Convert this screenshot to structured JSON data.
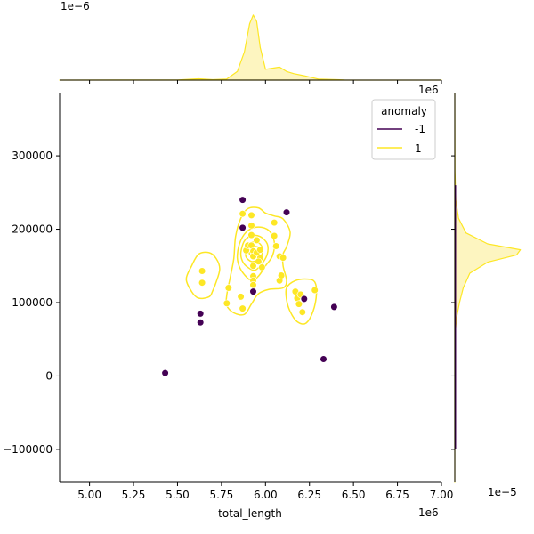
{
  "chart_data": {
    "type": "scatter",
    "title": "",
    "xlabel": "total_length",
    "ylabel": "",
    "x_offset_label": "1e6",
    "x_offset_label_top": "1e6",
    "top_marginal_offset_label": "1e−6",
    "right_marginal_offset_label": "1e−5",
    "xlim": [
      4.83,
      7.0
    ],
    "ylim": [
      -145000,
      385000
    ],
    "x_ticks": [
      5.0,
      5.25,
      5.5,
      5.75,
      6.0,
      6.25,
      6.5,
      6.75,
      7.0
    ],
    "x_tick_labels": [
      "5.00",
      "5.25",
      "5.50",
      "5.75",
      "6.00",
      "6.25",
      "6.50",
      "6.75",
      "7.00"
    ],
    "y_ticks": [
      -100000,
      0,
      100000,
      200000,
      300000
    ],
    "y_tick_labels": [
      "−100000",
      "0",
      "100000",
      "200000",
      "300000"
    ],
    "grid": false,
    "legend": {
      "title": "anomaly",
      "placement": "top-right",
      "entries": [
        {
          "label": "-1",
          "color": "#440154"
        },
        {
          "label": "1",
          "color": "#fde725"
        }
      ]
    },
    "colors": {
      "anomaly_neg": "#440154",
      "anomaly_pos": "#fde725",
      "kde_line": "#fde725",
      "kde_fill": "#fdf5c0"
    },
    "series": [
      {
        "name": "-1",
        "color": "#440154",
        "points": [
          [
            5.43,
            4000
          ],
          [
            5.63,
            73000
          ],
          [
            5.63,
            85000
          ],
          [
            5.87,
            202000
          ],
          [
            5.87,
            240000
          ],
          [
            5.93,
            115000
          ],
          [
            6.12,
            223000
          ],
          [
            6.22,
            105000
          ],
          [
            6.33,
            23000
          ],
          [
            6.39,
            94000
          ]
        ]
      },
      {
        "name": "1",
        "color": "#fde725",
        "points": [
          [
            5.64,
            127000
          ],
          [
            5.64,
            143000
          ],
          [
            5.78,
            99000
          ],
          [
            5.79,
            120000
          ],
          [
            5.86,
            108000
          ],
          [
            5.87,
            92000
          ],
          [
            5.87,
            221000
          ],
          [
            5.89,
            171000
          ],
          [
            5.9,
            178000
          ],
          [
            5.92,
            219000
          ],
          [
            5.92,
            205000
          ],
          [
            5.92,
            192000
          ],
          [
            5.92,
            178000
          ],
          [
            5.93,
            170000
          ],
          [
            5.93,
            163000
          ],
          [
            5.93,
            150000
          ],
          [
            5.93,
            136000
          ],
          [
            5.93,
            130000
          ],
          [
            5.97,
            161000
          ],
          [
            5.98,
            148000
          ],
          [
            5.95,
            168000
          ],
          [
            5.95,
            185000
          ],
          [
            5.97,
            172000
          ],
          [
            6.05,
            209000
          ],
          [
            6.05,
            191000
          ],
          [
            6.06,
            177000
          ],
          [
            6.08,
            163000
          ],
          [
            6.08,
            130000
          ],
          [
            6.09,
            137000
          ],
          [
            6.1,
            161000
          ],
          [
            6.17,
            115000
          ],
          [
            6.18,
            106000
          ],
          [
            6.19,
            98000
          ],
          [
            6.2,
            111000
          ],
          [
            6.21,
            87000
          ],
          [
            6.28,
            117000
          ],
          [
            5.93,
            124000
          ],
          [
            5.96,
            156000
          ]
        ]
      }
    ],
    "kde_contours": [
      [
        [
          5.58,
          150000
        ],
        [
          5.62,
          166000
        ],
        [
          5.68,
          168000
        ],
        [
          5.72,
          160000
        ],
        [
          5.74,
          146000
        ],
        [
          5.72,
          128000
        ],
        [
          5.7,
          116000
        ],
        [
          5.68,
          108000
        ],
        [
          5.62,
          106000
        ],
        [
          5.58,
          115000
        ],
        [
          5.55,
          132000
        ]
      ],
      [
        [
          5.78,
          110000
        ],
        [
          5.8,
          135000
        ],
        [
          5.82,
          160000
        ],
        [
          5.83,
          190000
        ],
        [
          5.86,
          215000
        ],
        [
          5.9,
          228000
        ],
        [
          5.96,
          229000
        ],
        [
          6.0,
          222000
        ],
        [
          6.05,
          218000
        ],
        [
          6.1,
          214000
        ],
        [
          6.14,
          196000
        ],
        [
          6.12,
          176000
        ],
        [
          6.1,
          166000
        ],
        [
          6.1,
          150000
        ],
        [
          6.12,
          130000
        ],
        [
          6.1,
          120000
        ],
        [
          6.02,
          118000
        ],
        [
          5.96,
          112000
        ],
        [
          5.92,
          98000
        ],
        [
          5.88,
          84000
        ],
        [
          5.82,
          86000
        ],
        [
          5.78,
          96000
        ]
      ],
      [
        [
          5.84,
          165000
        ],
        [
          5.86,
          185000
        ],
        [
          5.9,
          198000
        ],
        [
          5.96,
          203000
        ],
        [
          6.02,
          198000
        ],
        [
          6.05,
          183000
        ],
        [
          6.04,
          164000
        ],
        [
          6.0,
          150000
        ],
        [
          5.96,
          136000
        ],
        [
          5.92,
          130000
        ],
        [
          5.88,
          138000
        ],
        [
          5.85,
          150000
        ]
      ],
      [
        [
          5.86,
          168000
        ],
        [
          5.88,
          184000
        ],
        [
          5.92,
          191000
        ],
        [
          5.97,
          190000
        ],
        [
          6.01,
          180000
        ],
        [
          6.01,
          166000
        ],
        [
          5.98,
          153000
        ],
        [
          5.94,
          144000
        ],
        [
          5.9,
          148000
        ],
        [
          5.87,
          156000
        ]
      ],
      [
        [
          5.89,
          170000
        ],
        [
          5.91,
          180000
        ],
        [
          5.95,
          183000
        ],
        [
          5.98,
          176000
        ],
        [
          5.98,
          166000
        ],
        [
          5.95,
          158000
        ],
        [
          5.92,
          156000
        ],
        [
          5.89,
          162000
        ]
      ],
      [
        [
          5.91,
          170000
        ],
        [
          5.93,
          176000
        ],
        [
          5.96,
          175000
        ],
        [
          5.96,
          167000
        ],
        [
          5.93,
          164000
        ],
        [
          5.91,
          166000
        ]
      ],
      [
        [
          6.12,
          120000
        ],
        [
          6.17,
          130000
        ],
        [
          6.24,
          132000
        ],
        [
          6.28,
          128000
        ],
        [
          6.29,
          112000
        ],
        [
          6.27,
          88000
        ],
        [
          6.23,
          72000
        ],
        [
          6.18,
          74000
        ],
        [
          6.14,
          88000
        ],
        [
          6.12,
          104000
        ]
      ]
    ],
    "top_marginal": {
      "x": [
        4.83,
        5.5,
        5.62,
        5.66,
        5.7,
        5.78,
        5.84,
        5.88,
        5.91,
        5.93,
        5.95,
        5.97,
        6.0,
        6.04,
        6.08,
        6.12,
        6.16,
        6.22,
        6.3,
        6.45,
        7.0
      ],
      "density": [
        0,
        0.01,
        0.06,
        0.04,
        0.02,
        0.05,
        0.4,
        1.3,
        2.6,
        3.0,
        2.7,
        1.5,
        0.5,
        0.55,
        0.6,
        0.4,
        0.3,
        0.2,
        0.05,
        0.01,
        0
      ],
      "ymax": 3.2
    },
    "right_marginal": {
      "y": [
        -145000,
        0,
        60000,
        80000,
        100000,
        120000,
        140000,
        155000,
        165000,
        172000,
        180000,
        195000,
        215000,
        240000,
        280000,
        385000
      ],
      "density": [
        0,
        0.01,
        0.05,
        0.2,
        0.5,
        0.9,
        1.6,
        3.5,
        6.6,
        7.0,
        3.5,
        1.2,
        0.4,
        0.1,
        0.02,
        0
      ],
      "xmax": 7.5
    }
  }
}
